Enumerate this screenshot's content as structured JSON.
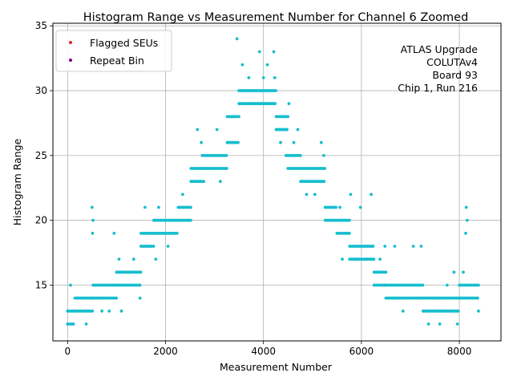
{
  "chart_data": {
    "type": "scatter",
    "title": "Histogram Range vs Measurement Number for Channel 6 Zoomed",
    "xlabel": "Measurement Number",
    "ylabel": "Histogram Range",
    "xlim": [
      -300,
      8850
    ],
    "ylim": [
      10.7,
      35.2
    ],
    "xticks": [
      0,
      2000,
      4000,
      6000,
      8000
    ],
    "yticks": [
      15,
      20,
      25,
      30,
      35
    ],
    "grid": true,
    "legend_position": "top-left",
    "legend": [
      {
        "label": "Flagged SEUs",
        "color": "#d62728"
      },
      {
        "label": "Repeat Bin",
        "color": "#800080"
      }
    ],
    "annotation_lines": [
      "ATLAS Upgrade",
      "COLUTAv4",
      "Board 93",
      "Chip 1, Run 216"
    ],
    "series": [
      {
        "color": "#17becf",
        "segments": [
          {
            "x0": 0,
            "x1": 150,
            "levels": [
              12,
              13
            ]
          },
          {
            "x0": 150,
            "x1": 520,
            "levels": [
              13,
              14
            ]
          },
          {
            "x0": 520,
            "x1": 1000,
            "levels": [
              14,
              15
            ]
          },
          {
            "x0": 1000,
            "x1": 1500,
            "levels": [
              15,
              16
            ]
          },
          {
            "x0": 1500,
            "x1": 1760,
            "levels": [
              18,
              19
            ]
          },
          {
            "x0": 1760,
            "x1": 2260,
            "levels": [
              19,
              20
            ]
          },
          {
            "x0": 2260,
            "x1": 2520,
            "levels": [
              20,
              21
            ]
          },
          {
            "x0": 2520,
            "x1": 2750,
            "levels": [
              23,
              24
            ]
          },
          {
            "x0": 2750,
            "x1": 3260,
            "levels": [
              24,
              25
            ]
          },
          {
            "x0": 3260,
            "x1": 3500,
            "levels": [
              26,
              28
            ]
          },
          {
            "x0": 3500,
            "x1": 3760,
            "levels": [
              29,
              30
            ]
          },
          {
            "x0": 3760,
            "x1": 4260,
            "levels": [
              29,
              30
            ]
          },
          {
            "x0": 4260,
            "x1": 4500,
            "levels": [
              27,
              28
            ]
          },
          {
            "x0": 4500,
            "x1": 4760,
            "levels": [
              24,
              25
            ]
          },
          {
            "x0": 4760,
            "x1": 5260,
            "levels": [
              23,
              24
            ]
          },
          {
            "x0": 5260,
            "x1": 5500,
            "levels": [
              21,
              20
            ]
          },
          {
            "x0": 5500,
            "x1": 5760,
            "levels": [
              20,
              19
            ]
          },
          {
            "x0": 5760,
            "x1": 6260,
            "levels": [
              18,
              17
            ]
          },
          {
            "x0": 6260,
            "x1": 6500,
            "levels": [
              15,
              16
            ]
          },
          {
            "x0": 6500,
            "x1": 6760,
            "levels": [
              15,
              14
            ]
          },
          {
            "x0": 6760,
            "x1": 7260,
            "levels": [
              14,
              15
            ]
          },
          {
            "x0": 7260,
            "x1": 7500,
            "levels": [
              13,
              14
            ]
          },
          {
            "x0": 7500,
            "x1": 8000,
            "levels": [
              13,
              14
            ]
          },
          {
            "x0": 8000,
            "x1": 8400,
            "levels": [
              14,
              15
            ]
          }
        ],
        "outliers": [
          [
            60,
            15
          ],
          [
            200,
            14
          ],
          [
            380,
            12
          ],
          [
            500,
            21
          ],
          [
            520,
            20
          ],
          [
            510,
            19
          ],
          [
            700,
            13
          ],
          [
            850,
            13
          ],
          [
            950,
            19
          ],
          [
            1050,
            17
          ],
          [
            1100,
            13
          ],
          [
            1350,
            17
          ],
          [
            1480,
            14
          ],
          [
            1580,
            21
          ],
          [
            1800,
            17
          ],
          [
            1860,
            21
          ],
          [
            2050,
            18
          ],
          [
            2350,
            22
          ],
          [
            2460,
            20
          ],
          [
            2650,
            27
          ],
          [
            2730,
            26
          ],
          [
            2780,
            23
          ],
          [
            3050,
            27
          ],
          [
            3120,
            23
          ],
          [
            3250,
            24
          ],
          [
            3380,
            28
          ],
          [
            3460,
            34
          ],
          [
            3570,
            32
          ],
          [
            3700,
            31
          ],
          [
            3920,
            33
          ],
          [
            4000,
            31
          ],
          [
            4080,
            32
          ],
          [
            4210,
            33
          ],
          [
            4230,
            31
          ],
          [
            4350,
            26
          ],
          [
            4460,
            25
          ],
          [
            4520,
            29
          ],
          [
            4620,
            26
          ],
          [
            4700,
            27
          ],
          [
            4880,
            22
          ],
          [
            5050,
            22
          ],
          [
            5180,
            26
          ],
          [
            5230,
            25
          ],
          [
            5560,
            21
          ],
          [
            5610,
            17
          ],
          [
            5780,
            22
          ],
          [
            5880,
            17
          ],
          [
            5980,
            21
          ],
          [
            6120,
            17
          ],
          [
            6200,
            22
          ],
          [
            6230,
            18
          ],
          [
            6380,
            17
          ],
          [
            6480,
            18
          ],
          [
            6680,
            18
          ],
          [
            6850,
            13
          ],
          [
            7060,
            18
          ],
          [
            7220,
            18
          ],
          [
            7370,
            12
          ],
          [
            7600,
            12
          ],
          [
            7750,
            15
          ],
          [
            7890,
            16
          ],
          [
            7960,
            12
          ],
          [
            8080,
            16
          ],
          [
            8140,
            21
          ],
          [
            8130,
            19
          ],
          [
            8160,
            20
          ],
          [
            8390,
            13
          ]
        ]
      }
    ]
  }
}
